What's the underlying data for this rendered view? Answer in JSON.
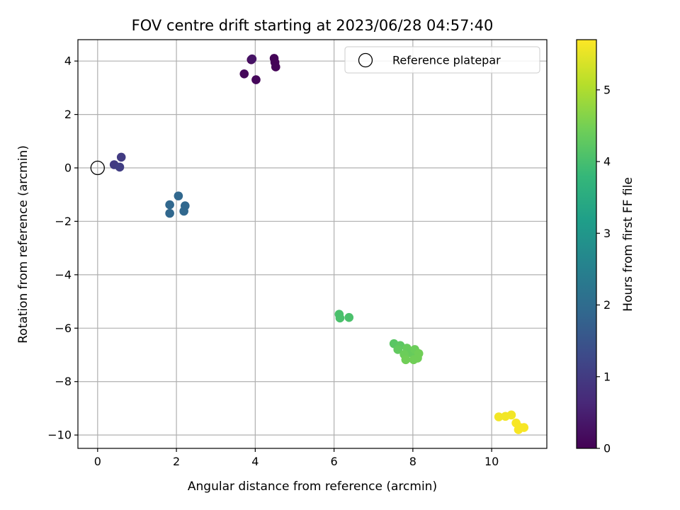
{
  "chart_data": {
    "type": "scatter",
    "title": "FOV centre drift starting at 2023/06/28 04:57:40",
    "xlabel": "Angular distance from reference (arcmin)",
    "ylabel": "Rotation from reference (arcmin)",
    "xlim": [
      -0.5,
      11.4
    ],
    "ylim": [
      -10.5,
      4.8
    ],
    "xticks": [
      0,
      2,
      4,
      6,
      8,
      10
    ],
    "yticks": [
      4,
      2,
      0,
      -2,
      -4,
      -6,
      -8,
      -10
    ],
    "xtick_labels": [
      "0",
      "2",
      "4",
      "6",
      "8",
      "10"
    ],
    "ytick_labels": [
      "4",
      "2",
      "0",
      "−2",
      "−4",
      "−6",
      "−8",
      "−10"
    ],
    "grid": true,
    "legend": {
      "placement": "top-right",
      "entries": [
        "Reference platepar"
      ]
    },
    "reference": {
      "x": 0,
      "y": 0,
      "marker": "open-circle"
    },
    "colorbar": {
      "label": "Hours from first FF file",
      "range": [
        0,
        5.7
      ],
      "ticks": [
        0,
        1,
        2,
        3,
        4,
        5
      ],
      "tick_labels": [
        "0",
        "1",
        "2",
        "3",
        "4",
        "5"
      ],
      "colormap": "viridis",
      "stops": [
        "#440154",
        "#482878",
        "#3e4989",
        "#31688e",
        "#26828e",
        "#1f9e89",
        "#35b779",
        "#6ece58",
        "#b5de2b",
        "#fde725"
      ]
    },
    "points": [
      {
        "x": 3.9,
        "y": 4.05,
        "t": 0.05
      },
      {
        "x": 4.48,
        "y": 4.1,
        "t": 0.05
      },
      {
        "x": 4.5,
        "y": 3.95,
        "t": 0.05
      },
      {
        "x": 4.52,
        "y": 3.78,
        "t": 0.05
      },
      {
        "x": 3.72,
        "y": 3.52,
        "t": 0.1
      },
      {
        "x": 4.02,
        "y": 3.3,
        "t": 0.1
      },
      {
        "x": 3.92,
        "y": 4.08,
        "t": 0.3
      },
      {
        "x": 0.42,
        "y": 0.12,
        "t": 1.0
      },
      {
        "x": 0.6,
        "y": 0.4,
        "t": 1.0
      },
      {
        "x": 0.56,
        "y": 0.03,
        "t": 1.05
      },
      {
        "x": 2.05,
        "y": -1.05,
        "t": 1.9
      },
      {
        "x": 1.83,
        "y": -1.38,
        "t": 1.9
      },
      {
        "x": 2.22,
        "y": -1.42,
        "t": 1.9
      },
      {
        "x": 2.19,
        "y": -1.62,
        "t": 1.9
      },
      {
        "x": 1.83,
        "y": -1.7,
        "t": 1.9
      },
      {
        "x": 6.13,
        "y": -5.48,
        "t": 4.05
      },
      {
        "x": 6.15,
        "y": -5.62,
        "t": 4.05
      },
      {
        "x": 6.38,
        "y": -5.6,
        "t": 4.05
      },
      {
        "x": 7.52,
        "y": -6.58,
        "t": 4.2
      },
      {
        "x": 7.68,
        "y": -6.65,
        "t": 4.25
      },
      {
        "x": 7.62,
        "y": -6.8,
        "t": 4.3
      },
      {
        "x": 7.85,
        "y": -6.75,
        "t": 4.35
      },
      {
        "x": 7.95,
        "y": -6.92,
        "t": 4.35
      },
      {
        "x": 7.78,
        "y": -6.98,
        "t": 4.4
      },
      {
        "x": 8.05,
        "y": -6.8,
        "t": 4.4
      },
      {
        "x": 8.15,
        "y": -6.95,
        "t": 4.45
      },
      {
        "x": 7.82,
        "y": -7.18,
        "t": 4.45
      },
      {
        "x": 8.12,
        "y": -7.12,
        "t": 4.45
      },
      {
        "x": 8.02,
        "y": -7.18,
        "t": 4.45
      },
      {
        "x": 10.18,
        "y": -9.32,
        "t": 5.6
      },
      {
        "x": 10.35,
        "y": -9.3,
        "t": 5.6
      },
      {
        "x": 10.5,
        "y": -9.25,
        "t": 5.6
      },
      {
        "x": 10.62,
        "y": -9.55,
        "t": 5.65
      },
      {
        "x": 10.68,
        "y": -9.8,
        "t": 5.65
      },
      {
        "x": 10.82,
        "y": -9.72,
        "t": 5.65
      },
      {
        "x": 10.72,
        "y": -9.72,
        "t": 5.65
      }
    ]
  }
}
